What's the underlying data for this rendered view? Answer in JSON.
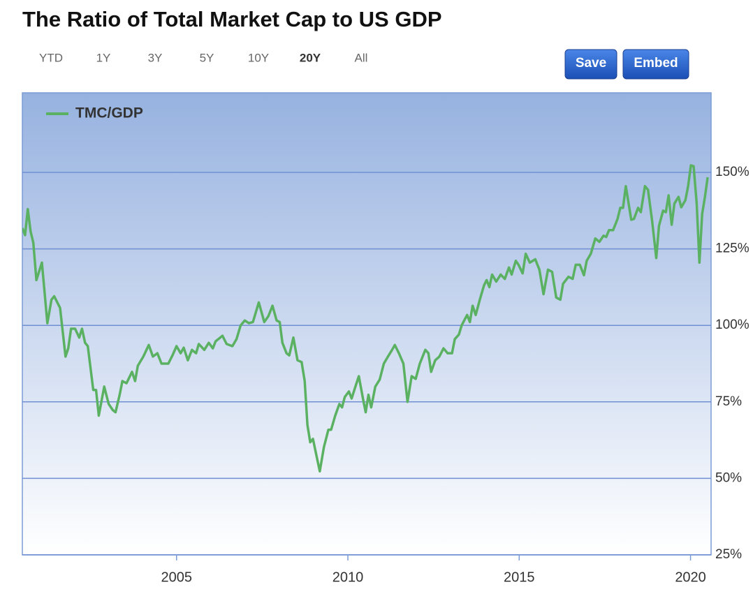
{
  "title": "The Ratio of Total Market Cap to US GDP",
  "toolbar": {
    "ranges": [
      "YTD",
      "1Y",
      "3Y",
      "5Y",
      "10Y",
      "20Y",
      "All"
    ],
    "selected": "20Y",
    "buttons": [
      "Save",
      "Embed"
    ]
  },
  "chart_data": {
    "type": "line",
    "x": [
      2000.5,
      2000.58,
      2000.66,
      2000.74,
      2000.82,
      2000.91,
      2001.07,
      2001.23,
      2001.35,
      2001.43,
      2001.6,
      2001.76,
      2001.84,
      2001.92,
      2002.04,
      2002.16,
      2002.24,
      2002.33,
      2002.41,
      2002.57,
      2002.65,
      2002.73,
      2002.89,
      2003.02,
      2003.14,
      2003.22,
      2003.34,
      2003.42,
      2003.54,
      2003.7,
      2003.79,
      2003.87,
      2004.03,
      2004.19,
      2004.31,
      2004.44,
      2004.56,
      2004.76,
      2004.88,
      2005.0,
      2005.12,
      2005.21,
      2005.33,
      2005.45,
      2005.57,
      2005.65,
      2005.81,
      2005.94,
      2006.06,
      2006.14,
      2006.22,
      2006.34,
      2006.46,
      2006.63,
      2006.75,
      2006.87,
      2006.99,
      2007.11,
      2007.23,
      2007.4,
      2007.56,
      2007.68,
      2007.8,
      2007.92,
      2008.01,
      2008.09,
      2008.21,
      2008.29,
      2008.41,
      2008.53,
      2008.65,
      2008.74,
      2008.82,
      2008.9,
      2008.98,
      2009.18,
      2009.3,
      2009.43,
      2009.51,
      2009.63,
      2009.75,
      2009.83,
      2009.91,
      2010.03,
      2010.11,
      2010.24,
      2010.32,
      2010.44,
      2010.52,
      2010.6,
      2010.68,
      2010.8,
      2010.93,
      2011.05,
      2011.17,
      2011.29,
      2011.37,
      2011.49,
      2011.62,
      2011.74,
      2011.86,
      2011.98,
      2012.1,
      2012.26,
      2012.35,
      2012.43,
      2012.55,
      2012.67,
      2012.79,
      2012.91,
      2013.04,
      2013.12,
      2013.24,
      2013.32,
      2013.48,
      2013.56,
      2013.64,
      2013.73,
      2013.85,
      2013.97,
      2014.05,
      2014.13,
      2014.21,
      2014.33,
      2014.46,
      2014.58,
      2014.7,
      2014.78,
      2014.9,
      2014.98,
      2015.1,
      2015.19,
      2015.31,
      2015.47,
      2015.59,
      2015.71,
      2015.84,
      2015.96,
      2016.08,
      2016.2,
      2016.28,
      2016.44,
      2016.56,
      2016.65,
      2016.77,
      2016.89,
      2016.97,
      2017.09,
      2017.22,
      2017.34,
      2017.46,
      2017.54,
      2017.62,
      2017.74,
      2017.87,
      2017.95,
      2018.03,
      2018.11,
      2018.27,
      2018.35,
      2018.47,
      2018.55,
      2018.67,
      2018.76,
      2018.88,
      2019.0,
      2019.08,
      2019.2,
      2019.28,
      2019.36,
      2019.45,
      2019.53,
      2019.65,
      2019.73,
      2019.85,
      2019.93,
      2020.01,
      2020.09,
      2020.18,
      2020.26,
      2020.34,
      2020.42,
      2020.5
    ],
    "series": [
      {
        "name": "TMC/GDP",
        "color": "#5bb162",
        "values": [
          131.8,
          129.5,
          138.0,
          130.7,
          127.0,
          114.8,
          120.5,
          100.7,
          108.4,
          109.5,
          105.7,
          89.8,
          92.5,
          98.9,
          98.9,
          96.0,
          98.9,
          94.3,
          93.2,
          78.9,
          78.9,
          70.5,
          80.0,
          74.3,
          72.3,
          71.6,
          77.3,
          81.8,
          81.1,
          84.8,
          81.8,
          86.8,
          89.8,
          93.6,
          89.8,
          90.9,
          87.5,
          87.5,
          90.2,
          93.2,
          90.9,
          92.7,
          88.6,
          92.0,
          90.9,
          93.9,
          92.0,
          94.3,
          92.5,
          94.8,
          95.5,
          96.6,
          93.9,
          93.2,
          95.5,
          100.0,
          101.6,
          100.7,
          101.1,
          107.5,
          101.1,
          103.0,
          106.4,
          101.6,
          101.1,
          94.3,
          90.9,
          90.2,
          96.0,
          88.6,
          88.0,
          81.8,
          67.5,
          61.8,
          62.9,
          52.3,
          60.2,
          65.9,
          65.9,
          70.5,
          74.3,
          73.2,
          76.6,
          78.4,
          76.1,
          80.7,
          83.4,
          76.1,
          71.6,
          77.3,
          73.2,
          80.0,
          82.3,
          87.5,
          89.8,
          92.0,
          93.6,
          90.9,
          87.5,
          75.0,
          83.4,
          82.5,
          87.5,
          92.0,
          90.9,
          84.8,
          88.6,
          89.8,
          92.5,
          90.9,
          90.9,
          95.5,
          97.0,
          100.0,
          103.4,
          101.1,
          106.4,
          103.4,
          108.4,
          113.0,
          114.8,
          112.5,
          116.6,
          114.3,
          116.6,
          115.2,
          118.9,
          116.6,
          121.1,
          119.8,
          117.0,
          123.4,
          120.5,
          121.6,
          118.2,
          110.2,
          118.2,
          117.5,
          109.1,
          108.4,
          113.6,
          115.9,
          115.2,
          119.8,
          119.8,
          116.4,
          121.1,
          123.4,
          128.4,
          127.3,
          129.3,
          128.9,
          131.1,
          131.1,
          134.8,
          138.4,
          138.4,
          145.5,
          134.5,
          134.8,
          138.4,
          137.0,
          145.5,
          144.3,
          134.1,
          122.0,
          132.5,
          137.5,
          137.0,
          142.5,
          132.9,
          139.8,
          142.0,
          138.6,
          140.9,
          145.5,
          152.3,
          152.0,
          139.8,
          120.5,
          136.4,
          142.0,
          148.4
        ]
      }
    ],
    "xlim": [
      2000.5,
      2020.6
    ],
    "xticks": [
      2005,
      2010,
      2015,
      2020
    ],
    "ylim": [
      25,
      176
    ],
    "yticks": [
      {
        "value": 25,
        "label": "25%"
      },
      {
        "value": 50,
        "label": "50%"
      },
      {
        "value": 75,
        "label": "75%"
      },
      {
        "value": 100,
        "label": "100%"
      },
      {
        "value": 125,
        "label": "125%"
      },
      {
        "value": 150,
        "label": "150%"
      }
    ],
    "grid": true,
    "legend": "top-left"
  }
}
